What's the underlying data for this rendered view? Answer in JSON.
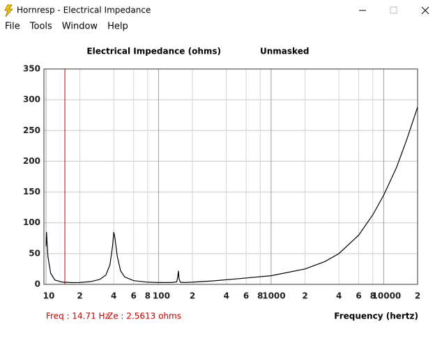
{
  "window": {
    "title": "Hornresp - Electrical Impedance",
    "menu": [
      "File",
      "Tools",
      "Window",
      "Help"
    ]
  },
  "chart_data": {
    "type": "line",
    "title": "Electrical Impedance (ohms)",
    "subtitle": "Unmasked",
    "x_label": "Frequency (hertz)",
    "annotations": [
      "Freq : 14.71 Hz",
      "Ze : 2.5613 ohms"
    ],
    "cursor": {
      "x": 14.71,
      "color": "#c00000"
    },
    "log_x": true,
    "grid": true,
    "xlim": [
      10,
      20000
    ],
    "ylim": [
      0,
      350
    ],
    "xticks": [
      10,
      {
        "value": 20,
        "label": "2"
      },
      {
        "value": 40,
        "label": "4"
      },
      {
        "value": 60,
        "label": "6"
      },
      {
        "value": 80,
        "label": "8"
      },
      100,
      {
        "value": 200,
        "label": "2"
      },
      {
        "value": 400,
        "label": "4"
      },
      {
        "value": 600,
        "label": "6"
      },
      {
        "value": 800,
        "label": "8"
      },
      1000,
      {
        "value": 2000,
        "label": "2"
      },
      {
        "value": 4000,
        "label": "4"
      },
      {
        "value": 6000,
        "label": "6"
      },
      {
        "value": 8000,
        "label": "8"
      },
      10000,
      {
        "value": 20000,
        "label": "2"
      }
    ],
    "yticks": [
      0,
      50,
      100,
      150,
      200,
      250,
      300,
      350
    ],
    "x": [
      10,
      10.1,
      10.2,
      10.4,
      11,
      12,
      14,
      17,
      20,
      25,
      30,
      34,
      37,
      39,
      40,
      41,
      43,
      46,
      50,
      60,
      80,
      100,
      130,
      145,
      148,
      150,
      152,
      156,
      170,
      200,
      300,
      500,
      1000,
      2000,
      3000,
      4000,
      6000,
      8000,
      10000,
      13000,
      16000,
      20000
    ],
    "series": [
      {
        "name": "Impedance",
        "color": "#000000",
        "values": [
          62,
          85,
          70,
          45,
          18,
          7,
          3.5,
          2.8,
          3,
          4.5,
          8,
          15,
          32,
          62,
          85,
          75,
          45,
          22,
          12,
          6,
          3.5,
          3,
          3,
          4,
          12,
          22,
          9,
          3.5,
          3,
          3.5,
          5.5,
          9,
          14,
          25,
          37,
          50,
          80,
          113,
          145,
          190,
          235,
          288
        ]
      }
    ]
  }
}
